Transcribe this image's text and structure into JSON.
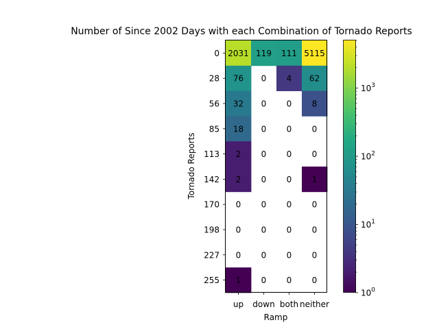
{
  "chart_data": {
    "type": "heatmap",
    "title": "Number of Since 2002 Days with each Combination of Tornado Reports",
    "xlabel": "Ramp",
    "ylabel": "Tornado Reports",
    "x_categories": [
      "up",
      "down",
      "both",
      "neither"
    ],
    "y_categories": [
      "0",
      "28",
      "56",
      "85",
      "113",
      "142",
      "170",
      "198",
      "227",
      "255"
    ],
    "values": [
      [
        2031,
        119,
        111,
        5115
      ],
      [
        76,
        0,
        4,
        62
      ],
      [
        32,
        0,
        0,
        8
      ],
      [
        18,
        0,
        0,
        0
      ],
      [
        2,
        0,
        0,
        0
      ],
      [
        2,
        0,
        0,
        1
      ],
      [
        0,
        0,
        0,
        0
      ],
      [
        0,
        0,
        0,
        0
      ],
      [
        0,
        0,
        0,
        0
      ],
      [
        1,
        0,
        0,
        0
      ]
    ],
    "colormap": "viridis",
    "zero_cells": "blank (white)",
    "colorbar": {
      "scale": "log",
      "range": [
        1,
        5115
      ],
      "ticks": [
        {
          "value": 1,
          "base": "10",
          "exp": "0"
        },
        {
          "value": 10,
          "base": "10",
          "exp": "1"
        },
        {
          "value": 100,
          "base": "10",
          "exp": "2"
        },
        {
          "value": 1000,
          "base": "10",
          "exp": "3"
        }
      ]
    }
  }
}
